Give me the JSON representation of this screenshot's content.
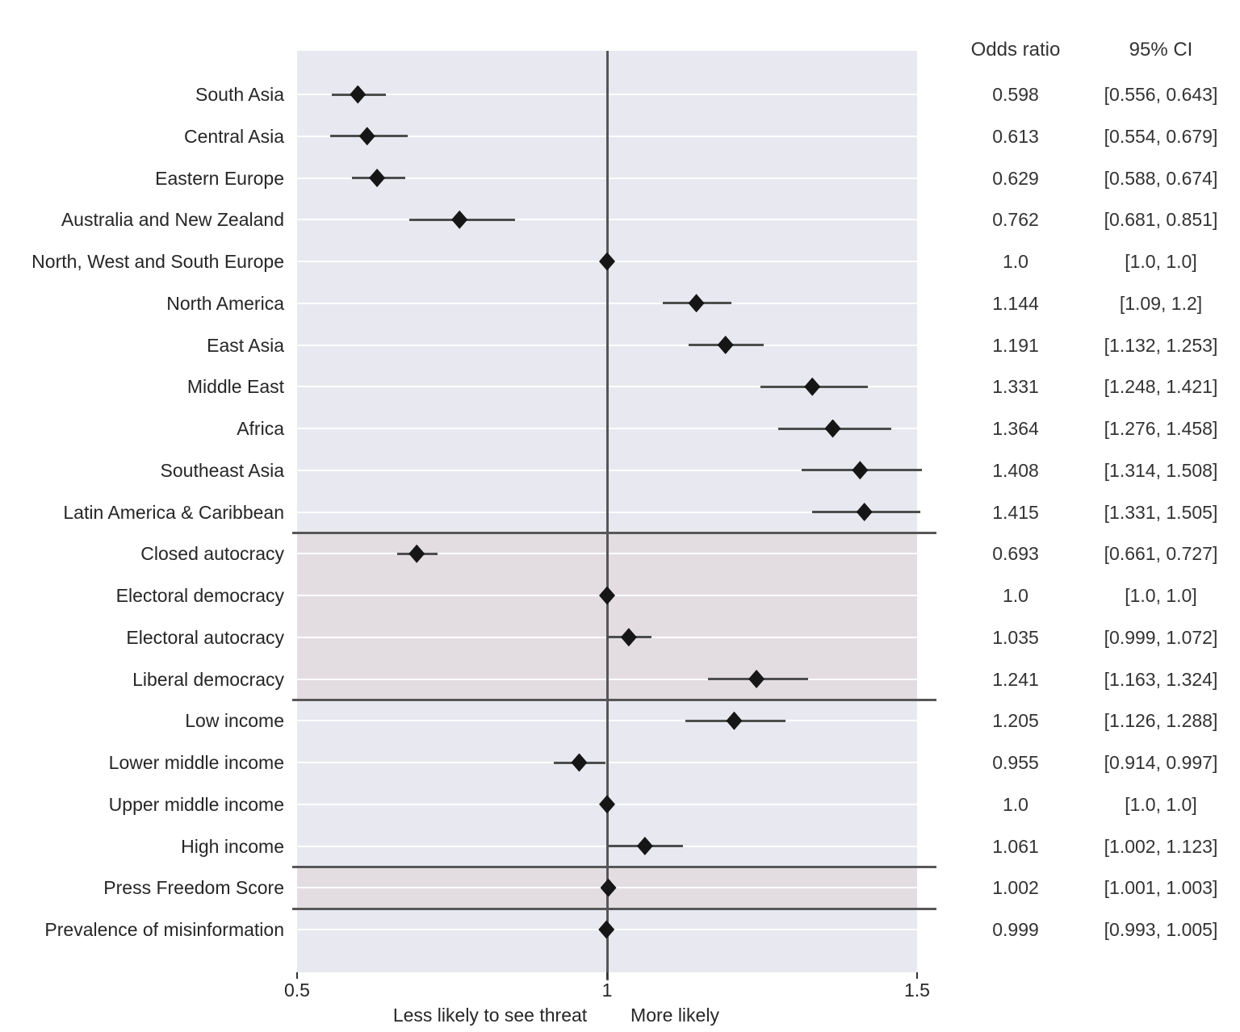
{
  "table": {
    "odds_ratio_header": "Odds ratio",
    "ci_header": "95% CI"
  },
  "colors": {
    "band_lavender": "#e8e8f0",
    "band_pink": "#e3dde2",
    "gridline": "#ffffff",
    "separator": "#575757",
    "reference_line": "#565656",
    "error_bar": "#4d4d4d",
    "marker": "#161616",
    "label_text": "#262626",
    "table_text": "#333333",
    "tick_mark": "#333333"
  },
  "chart_data": {
    "type": "forest-plot",
    "xlim": [
      0.5,
      1.5
    ],
    "reference_line": 1.0,
    "grid": "horizontal-white",
    "caption_left": "Less likely to see threat",
    "caption_right": "More likely",
    "columns": {
      "odds_ratio": "Odds ratio",
      "ci": "95% CI"
    },
    "ticks": [
      {
        "value": 0.5,
        "label": "0.5"
      },
      {
        "value": 1.0,
        "label": "1"
      },
      {
        "value": 1.5,
        "label": "1.5"
      }
    ],
    "sections": [
      {
        "id": "region",
        "band": "lavender",
        "rows": [
          {
            "label": "South Asia",
            "or": 0.598,
            "ci_low": 0.556,
            "ci_high": 0.643,
            "or_text": "0.598",
            "ci_text": "[0.556, 0.643]"
          },
          {
            "label": "Central Asia",
            "or": 0.613,
            "ci_low": 0.554,
            "ci_high": 0.679,
            "or_text": "0.613",
            "ci_text": "[0.554, 0.679]"
          },
          {
            "label": "Eastern Europe",
            "or": 0.629,
            "ci_low": 0.588,
            "ci_high": 0.674,
            "or_text": "0.629",
            "ci_text": "[0.588, 0.674]"
          },
          {
            "label": "Australia and New Zealand",
            "or": 0.762,
            "ci_low": 0.681,
            "ci_high": 0.851,
            "or_text": "0.762",
            "ci_text": "[0.681, 0.851]"
          },
          {
            "label": "North, West and South Europe",
            "or": 1.0,
            "ci_low": 1.0,
            "ci_high": 1.0,
            "or_text": "1.0",
            "ci_text": "[1.0, 1.0]"
          },
          {
            "label": "North America",
            "or": 1.144,
            "ci_low": 1.09,
            "ci_high": 1.2,
            "or_text": "1.144",
            "ci_text": "[1.09, 1.2]"
          },
          {
            "label": "East Asia",
            "or": 1.191,
            "ci_low": 1.132,
            "ci_high": 1.253,
            "or_text": "1.191",
            "ci_text": "[1.132, 1.253]"
          },
          {
            "label": "Middle East",
            "or": 1.331,
            "ci_low": 1.248,
            "ci_high": 1.421,
            "or_text": "1.331",
            "ci_text": "[1.248, 1.421]"
          },
          {
            "label": "Africa",
            "or": 1.364,
            "ci_low": 1.276,
            "ci_high": 1.458,
            "or_text": "1.364",
            "ci_text": "[1.276, 1.458]"
          },
          {
            "label": "Southeast Asia",
            "or": 1.408,
            "ci_low": 1.314,
            "ci_high": 1.508,
            "or_text": "1.408",
            "ci_text": "[1.314, 1.508]"
          },
          {
            "label": "Latin America & Caribbean",
            "or": 1.415,
            "ci_low": 1.331,
            "ci_high": 1.505,
            "or_text": "1.415",
            "ci_text": "[1.331, 1.505]"
          }
        ]
      },
      {
        "id": "regime",
        "band": "pink",
        "rows": [
          {
            "label": "Closed autocracy",
            "or": 0.693,
            "ci_low": 0.661,
            "ci_high": 0.727,
            "or_text": "0.693",
            "ci_text": "[0.661, 0.727]"
          },
          {
            "label": "Electoral democracy",
            "or": 1.0,
            "ci_low": 1.0,
            "ci_high": 1.0,
            "or_text": "1.0",
            "ci_text": "[1.0, 1.0]"
          },
          {
            "label": "Electoral autocracy",
            "or": 1.035,
            "ci_low": 0.999,
            "ci_high": 1.072,
            "or_text": "1.035",
            "ci_text": "[0.999, 1.072]"
          },
          {
            "label": "Liberal democracy",
            "or": 1.241,
            "ci_low": 1.163,
            "ci_high": 1.324,
            "or_text": "1.241",
            "ci_text": "[1.163, 1.324]"
          }
        ]
      },
      {
        "id": "income",
        "band": "lavender",
        "rows": [
          {
            "label": "Low income",
            "or": 1.205,
            "ci_low": 1.126,
            "ci_high": 1.288,
            "or_text": "1.205",
            "ci_text": "[1.126, 1.288]"
          },
          {
            "label": "Lower middle income",
            "or": 0.955,
            "ci_low": 0.914,
            "ci_high": 0.997,
            "or_text": "0.955",
            "ci_text": "[0.914, 0.997]"
          },
          {
            "label": "Upper middle income",
            "or": 1.0,
            "ci_low": 1.0,
            "ci_high": 1.0,
            "or_text": "1.0",
            "ci_text": "[1.0, 1.0]"
          },
          {
            "label": "High income",
            "or": 1.061,
            "ci_low": 1.002,
            "ci_high": 1.123,
            "or_text": "1.061",
            "ci_text": "[1.002, 1.123]"
          }
        ]
      },
      {
        "id": "press-freedom",
        "band": "pink",
        "rows": [
          {
            "label": "Press Freedom Score",
            "or": 1.002,
            "ci_low": 1.001,
            "ci_high": 1.003,
            "or_text": "1.002",
            "ci_text": "[1.001, 1.003]"
          }
        ]
      },
      {
        "id": "misinformation",
        "band": "lavender",
        "rows": [
          {
            "label": "Prevalence of misinformation",
            "or": 0.999,
            "ci_low": 0.993,
            "ci_high": 1.005,
            "or_text": "0.999",
            "ci_text": "[0.993, 1.005]"
          }
        ]
      }
    ]
  }
}
